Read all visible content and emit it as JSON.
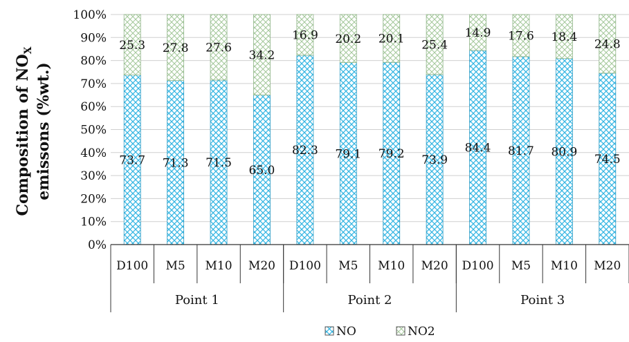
{
  "chart_data": {
    "type": "bar",
    "stacked": true,
    "percent_stacked": true,
    "ylabel_line1": "Composition of NO",
    "ylabel_subscript": "X",
    "ylabel_line2": "emissons (%wt.)",
    "xlabel": "",
    "ylim": [
      0,
      100
    ],
    "y_ticks": [
      "0%",
      "10%",
      "20%",
      "30%",
      "40%",
      "50%",
      "60%",
      "70%",
      "80%",
      "90%",
      "100%"
    ],
    "groups": [
      {
        "label": "Point 1",
        "categories": [
          "D100",
          "M5",
          "M10",
          "M20"
        ]
      },
      {
        "label": "Point 2",
        "categories": [
          "D100",
          "M5",
          "M10",
          "M20"
        ]
      },
      {
        "label": "Point 3",
        "categories": [
          "D100",
          "M5",
          "M10",
          "M20"
        ]
      }
    ],
    "series": [
      {
        "name": "NO",
        "color": "#35b6e3",
        "values": [
          73.7,
          71.3,
          71.5,
          65.0,
          82.3,
          79.1,
          79.2,
          73.9,
          84.4,
          81.7,
          80.9,
          74.5
        ],
        "labels": [
          "73.7",
          "71.3",
          "71.5",
          "65.0",
          "82.3",
          "79.1",
          "79.2",
          "73.9",
          "84.4",
          "81.7",
          "80.9",
          "74.5"
        ]
      },
      {
        "name": "NO2",
        "color": "#a3c79a",
        "values": [
          25.3,
          27.8,
          27.6,
          34.2,
          16.9,
          20.2,
          20.1,
          25.4,
          14.9,
          17.6,
          18.4,
          24.8
        ],
        "labels": [
          "25.3",
          "27.8",
          "27.6",
          "34.2",
          "16.9",
          "20.2",
          "20.1",
          "25.4",
          "14.9",
          "17.6",
          "18.4",
          "24.8"
        ]
      }
    ],
    "grid": true,
    "legend_position": "bottom"
  }
}
